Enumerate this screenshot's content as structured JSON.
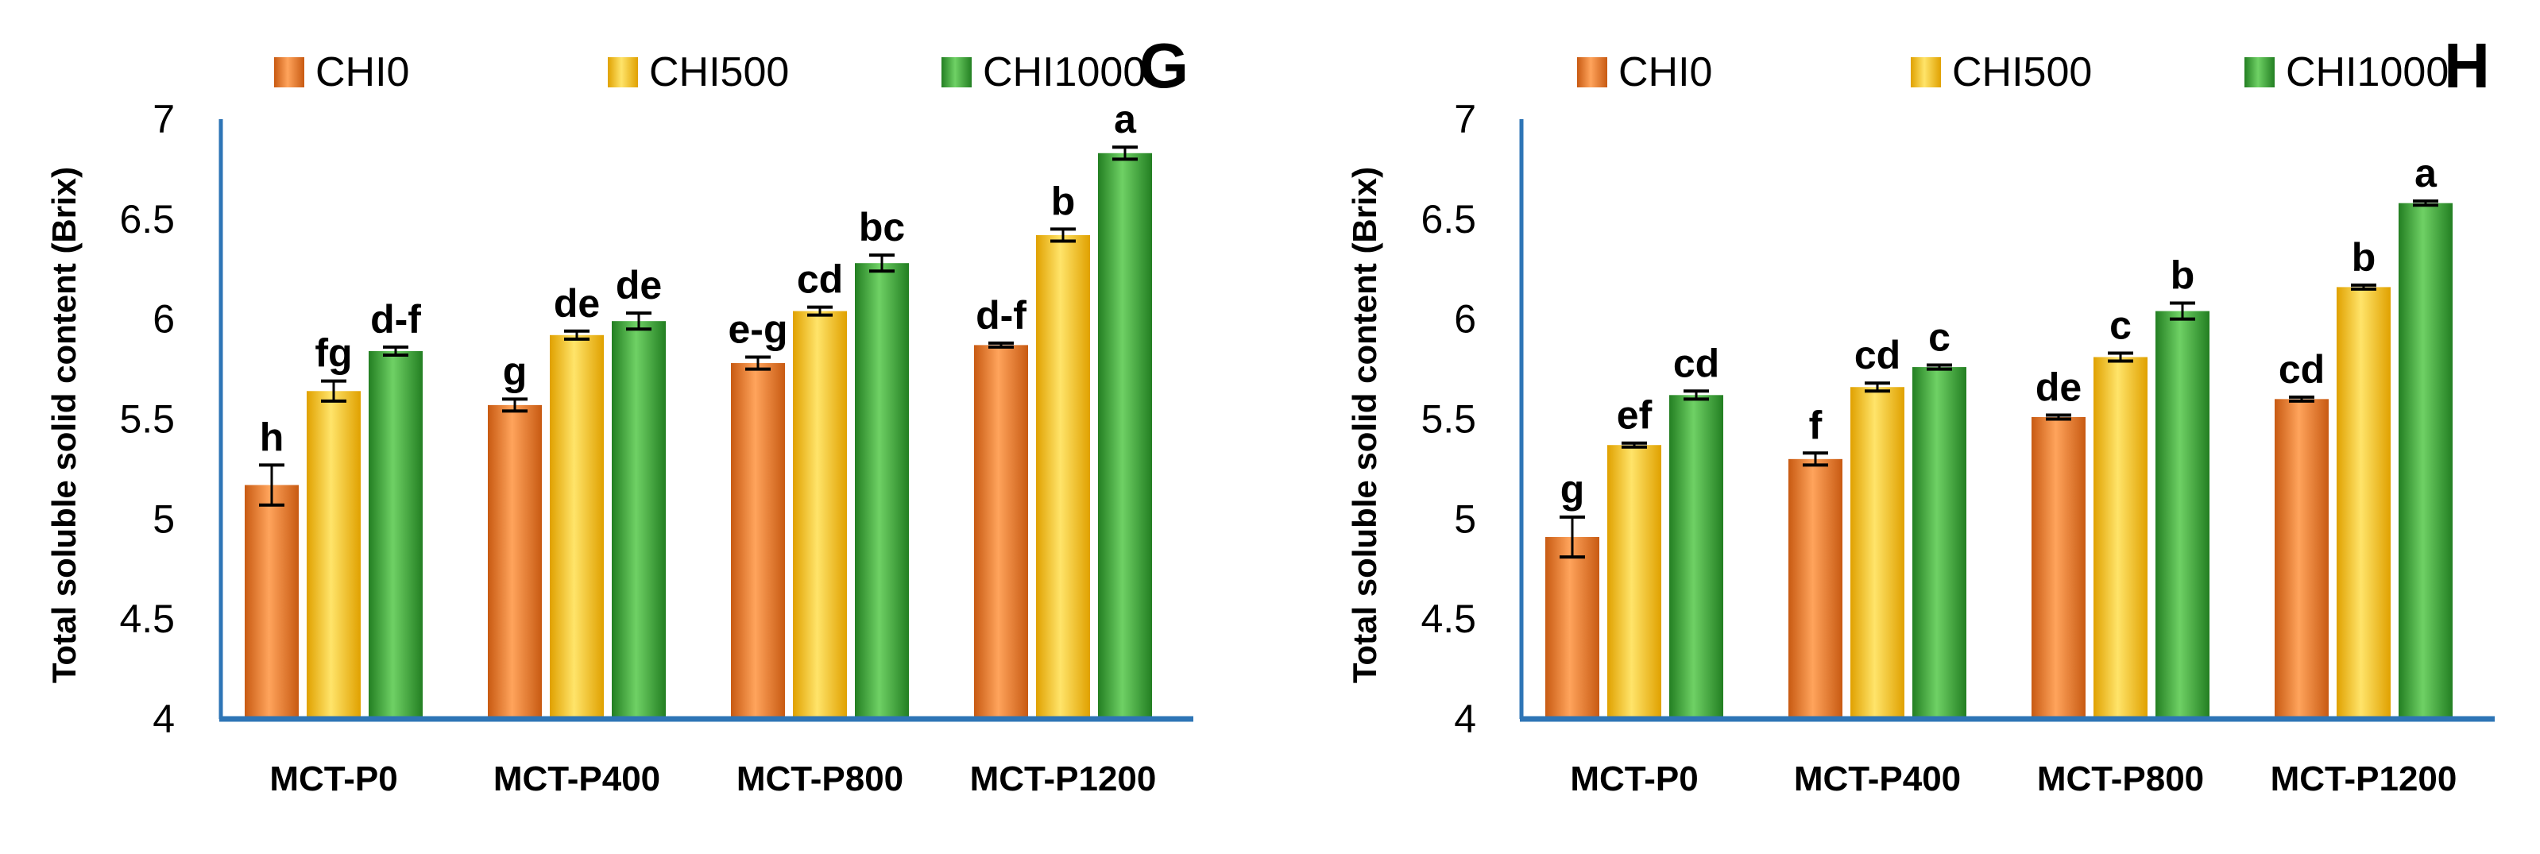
{
  "chart_data": [
    {
      "type": "bar",
      "panel_label": "G",
      "ylabel": "Total soluble solid content (Brix)",
      "ylim": [
        4,
        7
      ],
      "yticks": [
        "4",
        "4.5",
        "5",
        "5.5",
        "6",
        "6.5",
        "7"
      ],
      "categories": [
        "MCT-P0",
        "MCT-P400",
        "MCT-P800",
        "MCT-P1200"
      ],
      "series": [
        {
          "name": "CHI0",
          "values": [
            5.17,
            5.57,
            5.78,
            5.87
          ],
          "errors": [
            0.1,
            0.03,
            0.03,
            0.01
          ],
          "letters": [
            "h",
            "g",
            "e-g",
            "d-f"
          ]
        },
        {
          "name": "CHI500",
          "values": [
            5.64,
            5.92,
            6.04,
            6.42
          ],
          "errors": [
            0.05,
            0.02,
            0.02,
            0.03
          ],
          "letters": [
            "fg",
            "de",
            "cd",
            "b"
          ]
        },
        {
          "name": "CHI1000",
          "values": [
            5.84,
            5.99,
            6.28,
            6.83
          ],
          "errors": [
            0.02,
            0.04,
            0.04,
            0.03
          ],
          "letters": [
            "d-f",
            "de",
            "bc",
            "a"
          ]
        }
      ],
      "colors": {
        "CHI0": "#ee7d2b",
        "CHI500": "#ffc90e",
        "CHI1000": "#3fa43b"
      }
    },
    {
      "type": "bar",
      "panel_label": "H",
      "ylabel": "Total soluble solid content (Brix)",
      "ylim": [
        4,
        7
      ],
      "yticks": [
        "4",
        "4.5",
        "5",
        "5.5",
        "6",
        "6.5",
        "7"
      ],
      "categories": [
        "MCT-P0",
        "MCT-P400",
        "MCT-P800",
        "MCT-P1200"
      ],
      "series": [
        {
          "name": "CHI0",
          "values": [
            4.91,
            5.3,
            5.51,
            5.6
          ],
          "errors": [
            0.1,
            0.03,
            0.01,
            0.01
          ],
          "letters": [
            "g",
            "f",
            "de",
            "cd"
          ]
        },
        {
          "name": "CHI500",
          "values": [
            5.37,
            5.66,
            5.81,
            6.16
          ],
          "errors": [
            0.01,
            0.02,
            0.02,
            0.01
          ],
          "letters": [
            "ef",
            "cd",
            "c",
            "b"
          ]
        },
        {
          "name": "CHI1000",
          "values": [
            5.62,
            5.76,
            6.04,
            6.58
          ],
          "errors": [
            0.02,
            0.01,
            0.04,
            0.01
          ],
          "letters": [
            "cd",
            "c",
            "b",
            "a"
          ]
        }
      ],
      "colors": {
        "CHI0": "#ee7d2b",
        "CHI500": "#ffc90e",
        "CHI1000": "#3fa43b"
      }
    }
  ]
}
